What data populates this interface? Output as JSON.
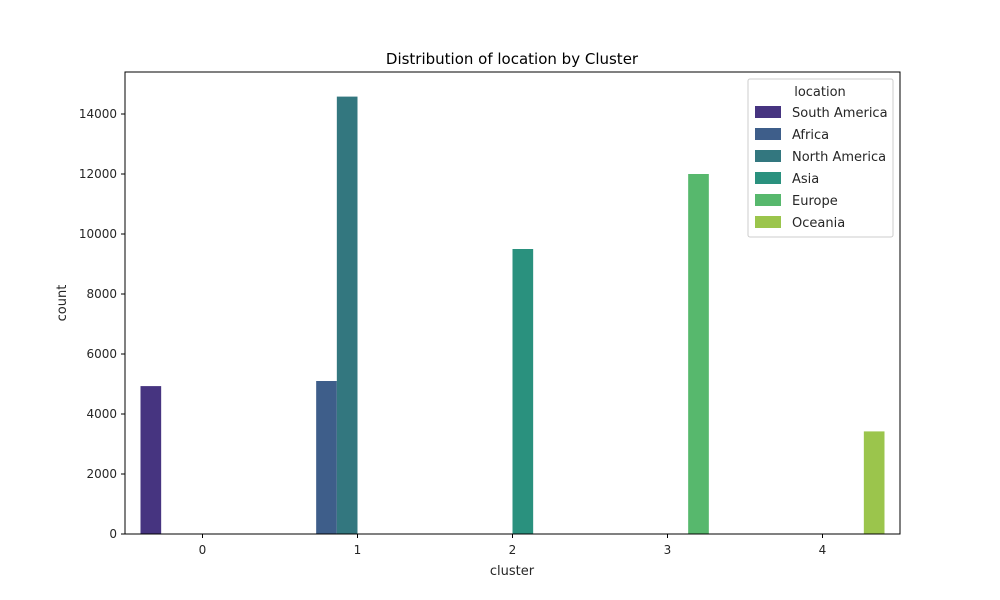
{
  "chart_data": {
    "type": "bar",
    "title": "Distribution of location by Cluster",
    "xlabel": "cluster",
    "ylabel": "count",
    "categories": [
      "0",
      "1",
      "2",
      "3",
      "4"
    ],
    "ylim": [
      0,
      15400
    ],
    "yticks": [
      "0",
      "2000",
      "4000",
      "6000",
      "8000",
      "10000",
      "12000",
      "14000"
    ],
    "legend_title": "location",
    "legend_position": "top-right",
    "grid": false,
    "series": [
      {
        "name": "South America",
        "color": "#463480",
        "values": [
          4930,
          0,
          0,
          0,
          0
        ]
      },
      {
        "name": "Africa",
        "color": "#3e5e8a",
        "values": [
          0,
          5100,
          0,
          0,
          0
        ]
      },
      {
        "name": "North America",
        "color": "#33777f",
        "values": [
          0,
          14580,
          0,
          0,
          0
        ]
      },
      {
        "name": "Asia",
        "color": "#2a917e",
        "values": [
          0,
          0,
          9500,
          0,
          0
        ]
      },
      {
        "name": "Europe",
        "color": "#57b86d",
        "values": [
          0,
          0,
          0,
          12000,
          0
        ]
      },
      {
        "name": "Oceania",
        "color": "#9bc54c",
        "values": [
          0,
          0,
          0,
          0,
          3420
        ]
      }
    ]
  }
}
